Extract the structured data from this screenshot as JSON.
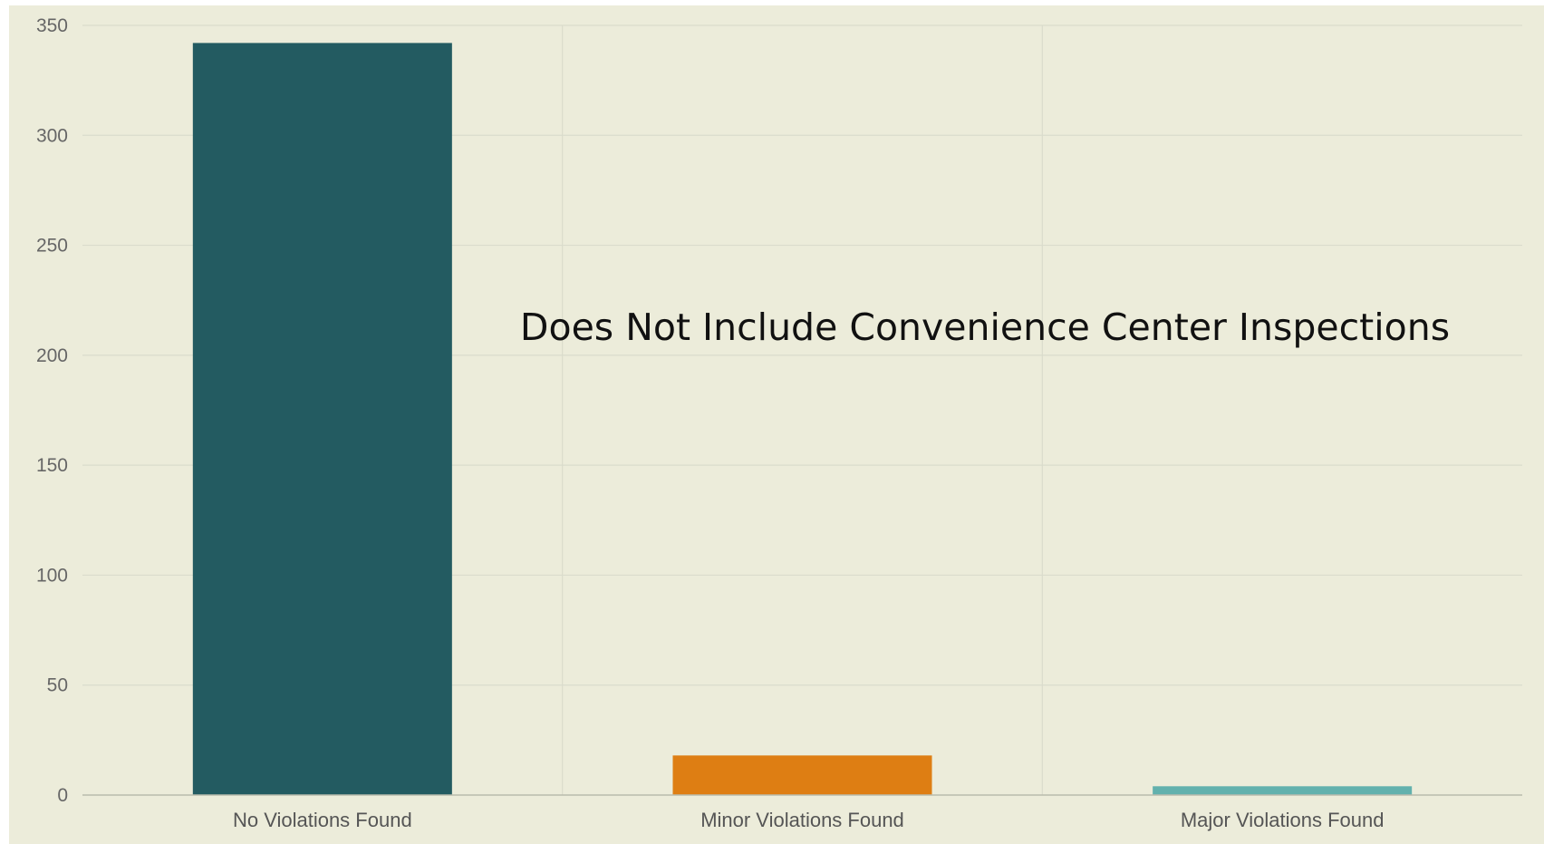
{
  "chart_data": {
    "type": "bar",
    "categories": [
      "No Violations Found",
      "Minor Violations Found",
      "Major Violations Found"
    ],
    "values": [
      342,
      18,
      4
    ],
    "colors": [
      "#235b61",
      "#de7e13",
      "#62b1ad"
    ],
    "title": "",
    "xlabel": "",
    "ylabel": "",
    "ylim": [
      0,
      350
    ],
    "yticks": [
      0,
      50,
      100,
      150,
      200,
      250,
      300,
      350
    ],
    "grid": true,
    "background": "#ececda",
    "annotation": "Does Not Include Convenience Center Inspections"
  }
}
